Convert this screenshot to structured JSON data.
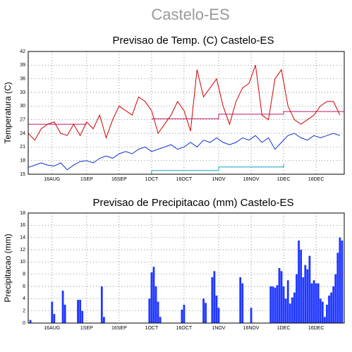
{
  "title": "Castelo-ES",
  "chart_data": [
    {
      "type": "line",
      "title": "Previsao de Temp. (C) Castelo-ES",
      "ylabel": "Temperatura (C)",
      "xlim": [
        217,
        363
      ],
      "ylim": [
        15,
        42
      ],
      "grid": true,
      "xticks": [
        {
          "value": 228,
          "label": "16AUG"
        },
        {
          "value": 244,
          "label": "1SEP"
        },
        {
          "value": 259,
          "label": "16SEP"
        },
        {
          "value": 274,
          "label": "1OCT"
        },
        {
          "value": 289,
          "label": "16OCT"
        },
        {
          "value": 305,
          "label": "1NOV"
        },
        {
          "value": 320,
          "label": "16NOV"
        },
        {
          "value": 335,
          "label": "1DEC"
        },
        {
          "value": 350,
          "label": "16DEC"
        }
      ],
      "yticks": [
        15,
        18,
        21,
        24,
        27,
        30,
        33,
        36,
        39,
        42
      ],
      "x": [
        217,
        220,
        223,
        226,
        229,
        232,
        235,
        238,
        241,
        244,
        247,
        250,
        253,
        256,
        259,
        262,
        265,
        268,
        271,
        274,
        277,
        280,
        283,
        286,
        289,
        292,
        295,
        298,
        301,
        304,
        307,
        310,
        313,
        316,
        319,
        322,
        325,
        328,
        331,
        334,
        337,
        340,
        343,
        346,
        349,
        352,
        355,
        358,
        361
      ],
      "series": [
        {
          "color": "#d40000",
          "values": [
            24,
            22.5,
            25,
            26,
            26.5,
            24,
            23.5,
            26,
            23.5,
            26.5,
            25,
            28,
            23,
            27,
            30,
            29,
            28,
            32,
            31,
            29,
            24,
            26,
            28,
            31,
            29,
            24.5,
            38,
            32,
            34,
            36,
            30,
            26,
            31,
            34,
            35,
            39,
            28,
            27,
            36,
            38,
            30,
            27,
            26,
            27,
            28,
            30,
            31,
            31,
            28
          ]
        },
        {
          "color": "#1030d0",
          "values": [
            16.5,
            17,
            17.5,
            17,
            16.8,
            17.5,
            16,
            17,
            17.8,
            18,
            17.5,
            18.5,
            19,
            18.5,
            19.5,
            20,
            19.5,
            20.5,
            21,
            20,
            20.5,
            21,
            21.5,
            20.5,
            21,
            22,
            21,
            22.5,
            22,
            23,
            22,
            21.5,
            22,
            23,
            22.5,
            23.5,
            22,
            23,
            20.5,
            22,
            23.5,
            24,
            23,
            22.5,
            23.5,
            23,
            23.5,
            24,
            23.5
          ]
        },
        {
          "color": "#c01868",
          "x": [
            217,
            244,
            274,
            274,
            305,
            305,
            335,
            335,
            363
          ],
          "values": [
            26,
            26,
            null,
            27.2,
            27.2,
            28.2,
            28.2,
            28.8,
            28.8
          ]
        },
        {
          "color": "#10a0c0",
          "x": [
            274,
            274,
            305,
            305,
            335,
            335
          ],
          "values": [
            15,
            15.8,
            15.8,
            16.6,
            16.6,
            17.3
          ]
        }
      ]
    },
    {
      "type": "bar",
      "title": "Previsao de Precipitacao (mm) Castelo-ES",
      "ylabel": "Precipitacao (mm)",
      "xlim": [
        217,
        363
      ],
      "ylim": [
        0,
        18
      ],
      "grid": true,
      "xticks": [
        {
          "value": 228,
          "label": "16AUG"
        },
        {
          "value": 244,
          "label": "1SEP"
        },
        {
          "value": 259,
          "label": "16SEP"
        },
        {
          "value": 274,
          "label": "1OCT"
        },
        {
          "value": 289,
          "label": "16OCT"
        },
        {
          "value": 305,
          "label": "1NOV"
        },
        {
          "value": 320,
          "label": "16NOV"
        },
        {
          "value": 335,
          "label": "1DEC"
        },
        {
          "value": 350,
          "label": "16DEC"
        }
      ],
      "yticks": [
        0,
        2,
        4,
        6,
        8,
        10,
        12,
        14,
        16,
        18
      ],
      "color": "#2038ff",
      "x": [
        218,
        228,
        229,
        233,
        234,
        240,
        241,
        242,
        251,
        252,
        273,
        274,
        275,
        276,
        277,
        278,
        288,
        289,
        298,
        299,
        302,
        303,
        304,
        305,
        315,
        316,
        320,
        329,
        330,
        331,
        332,
        333,
        334,
        335,
        336,
        337,
        338,
        339,
        340,
        341,
        342,
        343,
        344,
        345,
        346,
        347,
        348,
        349,
        350,
        351,
        352,
        353,
        354,
        355,
        356,
        357,
        358,
        359,
        360,
        361,
        362
      ],
      "values": [
        0.5,
        3.5,
        1.5,
        5.3,
        3,
        3.8,
        3.8,
        2,
        6,
        1,
        4,
        8.3,
        9.2,
        6,
        3.5,
        1,
        2.2,
        3,
        4,
        3.3,
        7.5,
        8.5,
        4.5,
        2.5,
        7.5,
        6.5,
        2.5,
        6,
        6,
        5.8,
        6.2,
        9,
        8.5,
        6,
        4,
        7,
        3.2,
        4.2,
        5,
        8,
        13.5,
        12,
        7.5,
        9.5,
        8.8,
        11,
        6.5,
        7,
        6.5,
        6.5,
        4,
        3.5,
        1,
        3,
        4.5,
        5,
        6,
        8,
        11.5,
        14,
        13.5
      ]
    }
  ]
}
